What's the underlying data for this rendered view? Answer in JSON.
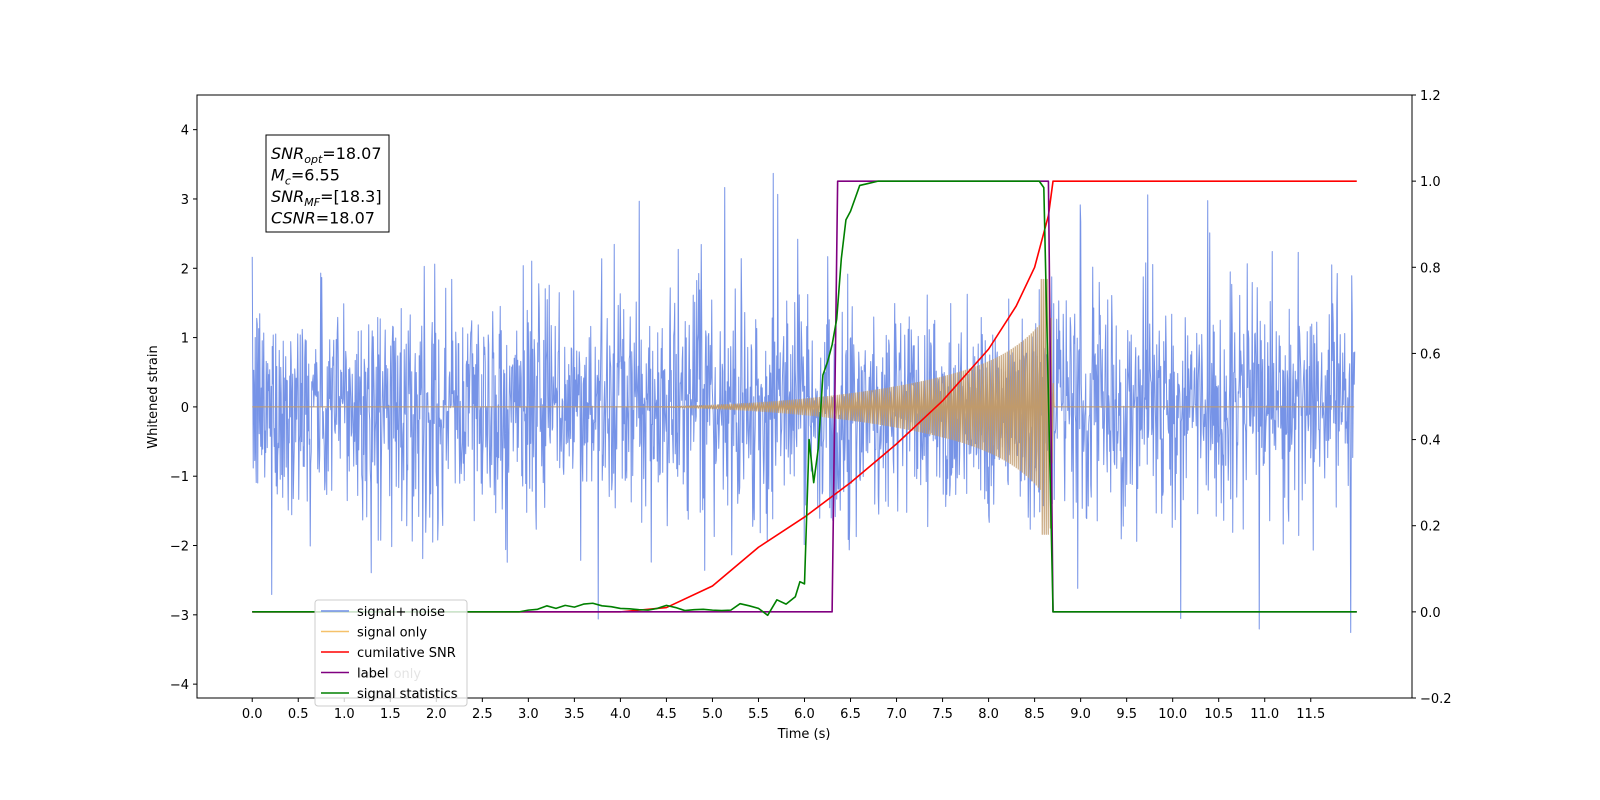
{
  "chart_data": {
    "type": "line",
    "xlabel": "Time (s)",
    "ylabel": "Whitened strain",
    "xlim": [
      -0.6,
      12.6
    ],
    "ylim": [
      -4.2,
      4.5
    ],
    "y2lim": [
      -0.2,
      1.2
    ],
    "x_ticks": [
      "0.0",
      "0.5",
      "1.0",
      "1.5",
      "2.0",
      "2.5",
      "3.0",
      "3.5",
      "4.0",
      "4.5",
      "5.0",
      "5.5",
      "6.0",
      "6.5",
      "7.0",
      "7.5",
      "8.0",
      "8.5",
      "9.0",
      "9.5",
      "10.0",
      "10.5",
      "11.0",
      "11.5"
    ],
    "y_ticks": [
      4,
      3,
      2,
      1,
      0,
      -1,
      -2,
      -3,
      -4
    ],
    "y2_ticks": [
      "1.2",
      "1.0",
      "0.8",
      "0.6",
      "0.4",
      "0.2",
      "0.0",
      "−0.2"
    ],
    "annotation": {
      "lines": [
        {
          "base": "SNR",
          "sub": "opt",
          "rest": "=18.07"
        },
        {
          "base": "M",
          "sub": "c",
          "rest": "=6.55"
        },
        {
          "base": "SNR",
          "sub": "MF",
          "rest": "=[18.3]"
        },
        {
          "base": "CSNR",
          "sub": "",
          "rest": "=18.07"
        }
      ]
    },
    "legend": {
      "placement": "lower-left",
      "entries": [
        "signal+ noise",
        "signal only",
        "cumilative SNR",
        "label",
        "signal statistics"
      ],
      "hidden_behind": [
        "label only",
        "signal statistics"
      ]
    },
    "series": [
      {
        "name": "signal+ noise",
        "axis": "left",
        "color": "#6f8de6",
        "kind": "noise",
        "x_start": 0.0,
        "x_end": 11.98,
        "sigma": 0.78
      },
      {
        "name": "signal only",
        "axis": "left",
        "color": "#f5c16a",
        "kind": "chirp",
        "onset": 4.3,
        "peak_time": 8.65,
        "peak_amplitude": 1.6
      },
      {
        "name": "cumilative SNR",
        "axis": "right",
        "color": "#ff0000",
        "x": [
          0.0,
          4.0,
          4.5,
          5.0,
          5.5,
          6.0,
          6.5,
          7.0,
          7.5,
          8.0,
          8.3,
          8.5,
          8.6,
          8.65,
          8.7,
          12.0
        ],
        "y": [
          0.0,
          0.0,
          0.01,
          0.06,
          0.15,
          0.22,
          0.3,
          0.39,
          0.49,
          0.61,
          0.71,
          0.8,
          0.88,
          0.92,
          1.0,
          1.0
        ]
      },
      {
        "name": "label",
        "axis": "right",
        "color": "#800080",
        "x": [
          0.0,
          6.3,
          6.36,
          8.65,
          8.7,
          12.0
        ],
        "y": [
          0.0,
          0.0,
          1.0,
          1.0,
          0.0,
          0.0
        ]
      },
      {
        "name": "signal statistics",
        "axis": "right",
        "color": "#008000",
        "x": [
          0.0,
          2.9,
          3.0,
          3.1,
          3.2,
          3.3,
          3.4,
          3.5,
          3.6,
          3.7,
          3.8,
          3.9,
          4.0,
          4.1,
          4.2,
          4.3,
          4.4,
          4.5,
          4.6,
          4.7,
          4.8,
          4.9,
          5.0,
          5.1,
          5.2,
          5.3,
          5.4,
          5.5,
          5.6,
          5.7,
          5.8,
          5.9,
          5.95,
          6.0,
          6.05,
          6.1,
          6.15,
          6.2,
          6.25,
          6.3,
          6.35,
          6.4,
          6.45,
          6.5,
          6.55,
          6.6,
          6.7,
          6.8,
          7.0,
          8.55,
          8.6,
          8.65,
          8.7,
          8.75,
          12.0
        ],
        "y": [
          0.0,
          0.0,
          0.004,
          0.006,
          0.014,
          0.008,
          0.015,
          0.011,
          0.018,
          0.02,
          0.014,
          0.012,
          0.008,
          0.007,
          0.005,
          0.004,
          0.008,
          0.015,
          0.01,
          0.003,
          0.005,
          0.006,
          0.004,
          0.003,
          0.004,
          0.019,
          0.014,
          0.008,
          -0.008,
          0.028,
          0.018,
          0.035,
          0.07,
          0.065,
          0.4,
          0.3,
          0.38,
          0.55,
          0.58,
          0.62,
          0.68,
          0.82,
          0.91,
          0.93,
          0.96,
          0.99,
          0.995,
          1.0,
          1.0,
          1.0,
          0.985,
          0.5,
          0.0,
          0.0,
          0.0
        ]
      }
    ]
  }
}
